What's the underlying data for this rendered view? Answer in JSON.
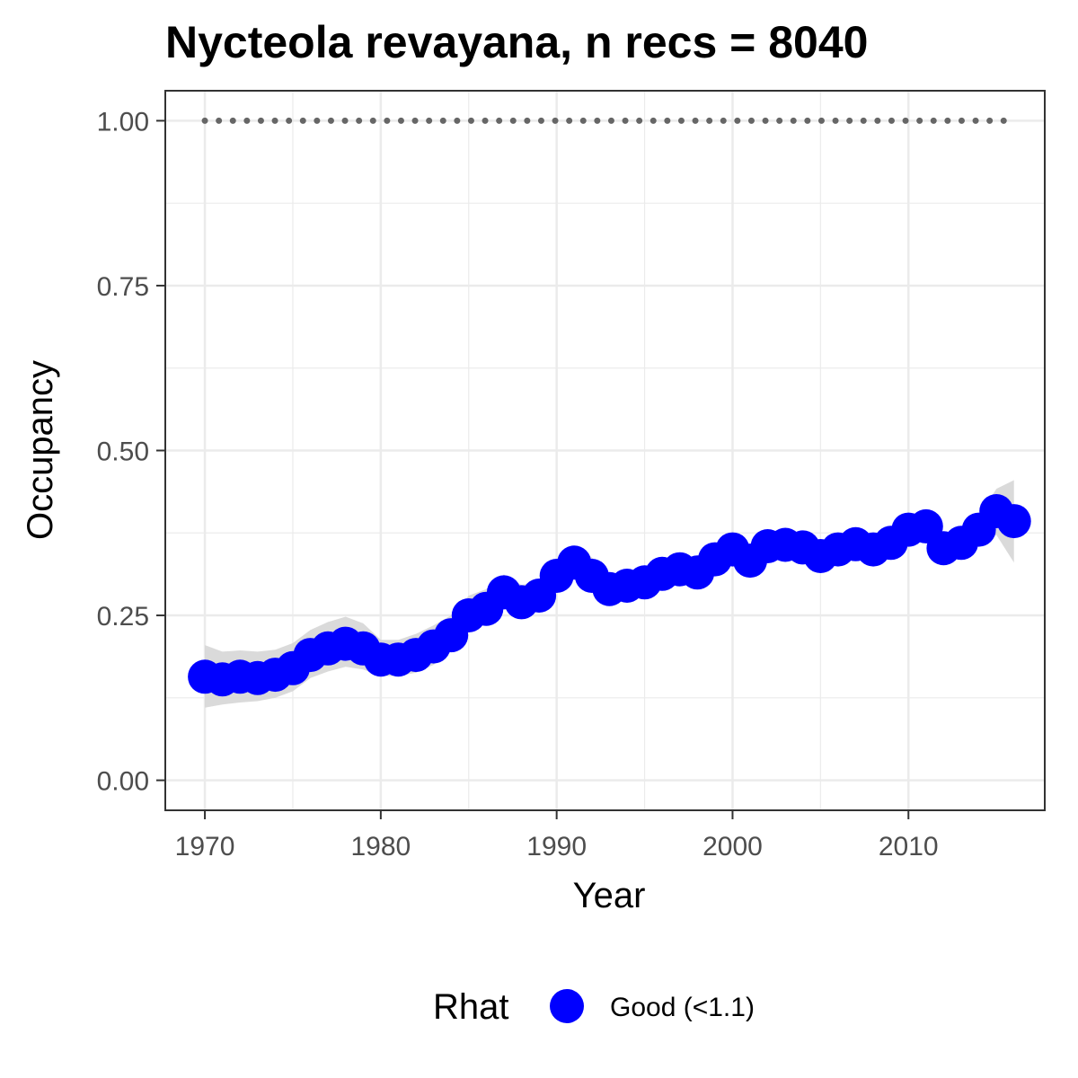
{
  "chart_data": {
    "type": "line",
    "title": "Nycteola revayana, n recs = 8040",
    "xlabel": "Year",
    "ylabel": "Occupancy",
    "xlim": [
      1967.75,
      2017.75
    ],
    "ylim": [
      -0.0455,
      1.0455
    ],
    "x_ticks": [
      1970,
      1980,
      1990,
      2000,
      2010
    ],
    "x_tick_labels": [
      "1970",
      "1980",
      "1990",
      "2000",
      "2010"
    ],
    "y_ticks": [
      0,
      0.25,
      0.5,
      0.75,
      1.0
    ],
    "y_tick_labels": [
      "0.00",
      "0.25",
      "0.50",
      "0.75",
      "1.00"
    ],
    "grid": true,
    "legend": {
      "title": "Rhat",
      "position": "bottom",
      "entries": [
        {
          "label": "Good (<1.1)",
          "color": "#0000ff"
        }
      ]
    },
    "colors": {
      "points": "#0000ff",
      "ribbon": "#d3d3d3",
      "reference": "#666666",
      "panel_border": "#333333",
      "grid": "#ebebeb"
    },
    "reference_line": {
      "y": 1.0,
      "x_from": 1970,
      "x_to": 2016,
      "style": "dotted"
    },
    "x": [
      1970,
      1971,
      1972,
      1973,
      1974,
      1975,
      1976,
      1977,
      1978,
      1979,
      1980,
      1981,
      1982,
      1983,
      1984,
      1985,
      1986,
      1987,
      1988,
      1989,
      1990,
      1991,
      1992,
      1993,
      1994,
      1995,
      1996,
      1997,
      1998,
      1999,
      2000,
      2001,
      2002,
      2003,
      2004,
      2005,
      2006,
      2007,
      2008,
      2009,
      2010,
      2011,
      2012,
      2013,
      2014,
      2015,
      2016
    ],
    "series": [
      {
        "values": [
          0.157,
          0.153,
          0.157,
          0.155,
          0.16,
          0.17,
          0.19,
          0.2,
          0.207,
          0.2,
          0.183,
          0.183,
          0.19,
          0.203,
          0.22,
          0.25,
          0.26,
          0.285,
          0.27,
          0.28,
          0.31,
          0.33,
          0.31,
          0.29,
          0.295,
          0.3,
          0.313,
          0.32,
          0.315,
          0.335,
          0.35,
          0.333,
          0.355,
          0.357,
          0.353,
          0.34,
          0.35,
          0.358,
          0.35,
          0.36,
          0.38,
          0.385,
          0.352,
          0.36,
          0.38,
          0.408,
          0.393
        ],
        "lower": [
          0.11,
          0.115,
          0.118,
          0.12,
          0.125,
          0.135,
          0.155,
          0.165,
          0.172,
          0.168,
          0.158,
          0.158,
          0.163,
          0.175,
          0.195,
          0.225,
          0.24,
          0.262,
          0.248,
          0.262,
          0.292,
          0.305,
          0.285,
          0.27,
          0.278,
          0.283,
          0.298,
          0.305,
          0.3,
          0.318,
          0.328,
          0.318,
          0.338,
          0.34,
          0.338,
          0.325,
          0.335,
          0.343,
          0.336,
          0.345,
          0.362,
          0.36,
          0.335,
          0.345,
          0.36,
          0.372,
          0.33
        ],
        "upper": [
          0.205,
          0.195,
          0.197,
          0.195,
          0.198,
          0.208,
          0.228,
          0.24,
          0.248,
          0.238,
          0.213,
          0.213,
          0.222,
          0.235,
          0.25,
          0.28,
          0.29,
          0.312,
          0.296,
          0.302,
          0.335,
          0.355,
          0.338,
          0.312,
          0.315,
          0.32,
          0.333,
          0.338,
          0.333,
          0.355,
          0.372,
          0.35,
          0.374,
          0.376,
          0.37,
          0.357,
          0.367,
          0.374,
          0.366,
          0.377,
          0.398,
          0.405,
          0.372,
          0.378,
          0.4,
          0.442,
          0.455
        ]
      }
    ]
  }
}
